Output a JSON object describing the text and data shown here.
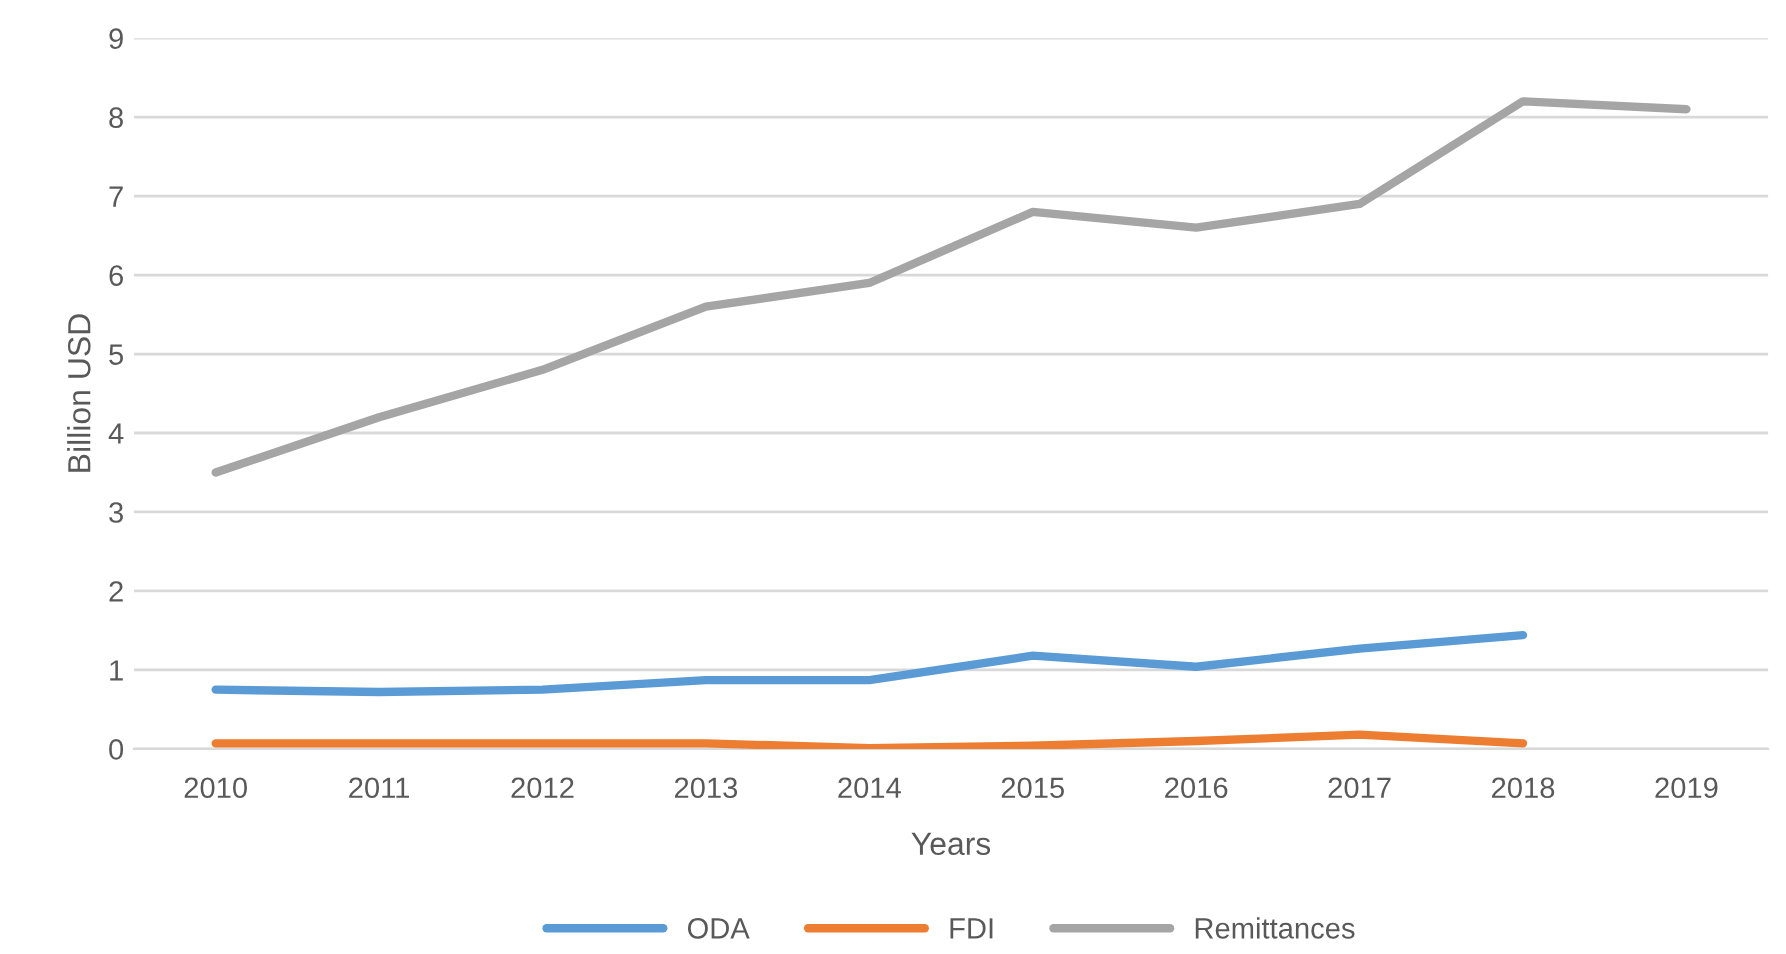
{
  "chart_data": {
    "type": "line",
    "xlabel": "Years",
    "ylabel": "Billion USD",
    "categories": [
      "2010",
      "2011",
      "2012",
      "2013",
      "2014",
      "2015",
      "2016",
      "2017",
      "2018",
      "2019"
    ],
    "series": [
      {
        "name": "ODA",
        "color": "#5b9bd5",
        "values": [
          0.75,
          0.72,
          0.75,
          0.87,
          0.87,
          1.18,
          1.04,
          1.27,
          1.44,
          null
        ]
      },
      {
        "name": "FDI",
        "color": "#ed7d31",
        "values": [
          0.07,
          0.07,
          0.07,
          0.07,
          0.01,
          0.04,
          0.1,
          0.18,
          0.07,
          null
        ]
      },
      {
        "name": "Remittances",
        "color": "#a5a5a5",
        "values": [
          3.5,
          4.2,
          4.8,
          5.6,
          5.9,
          6.8,
          6.6,
          6.9,
          8.2,
          8.1
        ]
      }
    ],
    "ylim": [
      0,
      9
    ],
    "yticks": [
      0,
      1,
      2,
      3,
      4,
      5,
      6,
      7,
      8,
      9
    ],
    "grid": "y",
    "legend": "bottom",
    "marker": "none",
    "line_style": "solid"
  }
}
